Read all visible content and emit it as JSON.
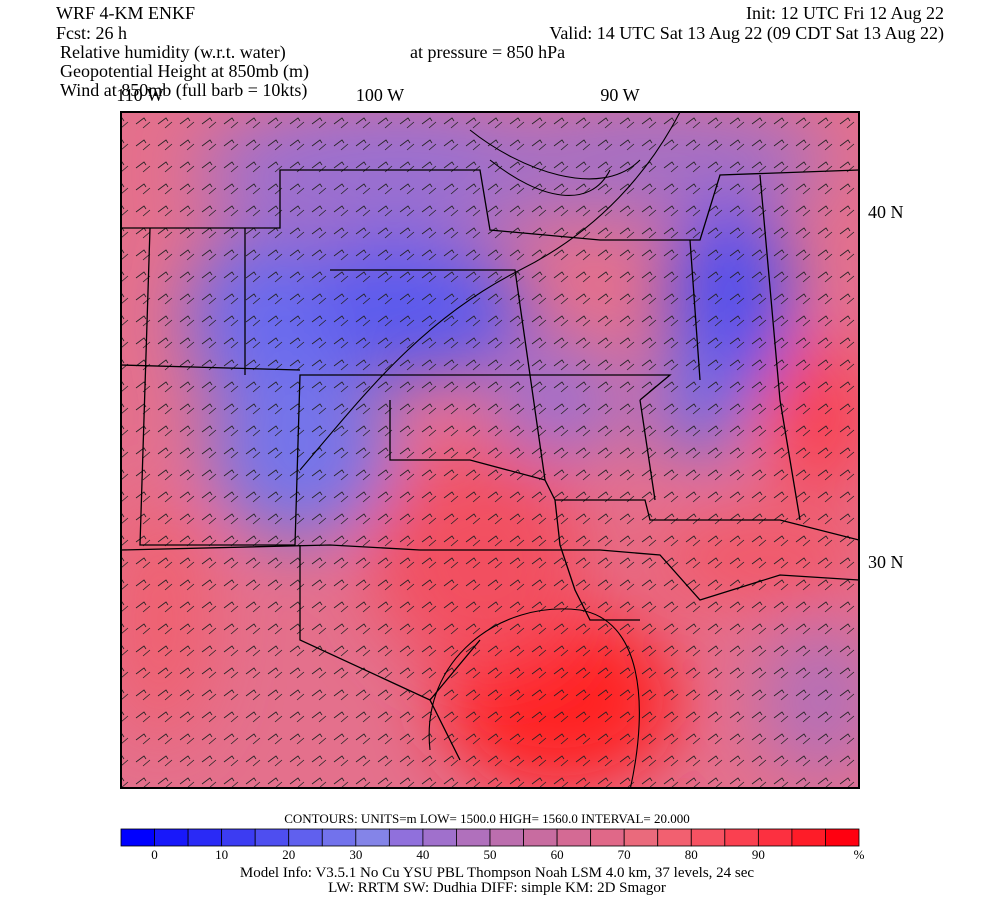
{
  "header": {
    "left": [
      "WRF 4-KM ENKF",
      "Fcst:   26 h"
    ],
    "fields": [
      "Relative humidity (w.r.t. water)",
      "Geopotential Height at 850mb (m)",
      "Wind at 850mb (full barb = 10kts)"
    ],
    "init": "Init: 12 UTC Fri 12 Aug 22",
    "valid": "Valid: 14 UTC Sat 13 Aug 22 (09 CDT Sat 13 Aug 22)",
    "pressure": "at pressure =  850 hPa"
  },
  "map": {
    "lon_labels": [
      "110 W",
      "100 W",
      "90 W"
    ],
    "lat_labels": [
      "40 N",
      "30 N"
    ]
  },
  "contours": "CONTOURS:  UNITS=m  LOW=   1500.0      HIGH=  1560.0      INTERVAL=    20.000",
  "colorbar": {
    "labels": [
      "0",
      "10",
      "20",
      "30",
      "40",
      "50",
      "60",
      "70",
      "80",
      "90",
      "%"
    ],
    "colors": [
      "#0000ff",
      "#1818fa",
      "#2a2af6",
      "#3c3cf2",
      "#4e4ef0",
      "#6060ee",
      "#7272ec",
      "#8484e8",
      "#9070dc",
      "#a070cc",
      "#b070bc",
      "#bc6eae",
      "#c86ca0",
      "#d46a94",
      "#e06888",
      "#ea6a7c",
      "#f26070",
      "#f65262",
      "#fa4050",
      "#fc3040",
      "#fe1c28",
      "#ff0010"
    ]
  },
  "footer": [
    "Model Info: V3.5.1    No Cu    YSU PBL   Thompson     Noah LSM  4.0 km,  37 levels,    24 sec",
    "LW: RRTM  SW: Dudhia   DIFF: simple  KM: 2D Smagor"
  ]
}
